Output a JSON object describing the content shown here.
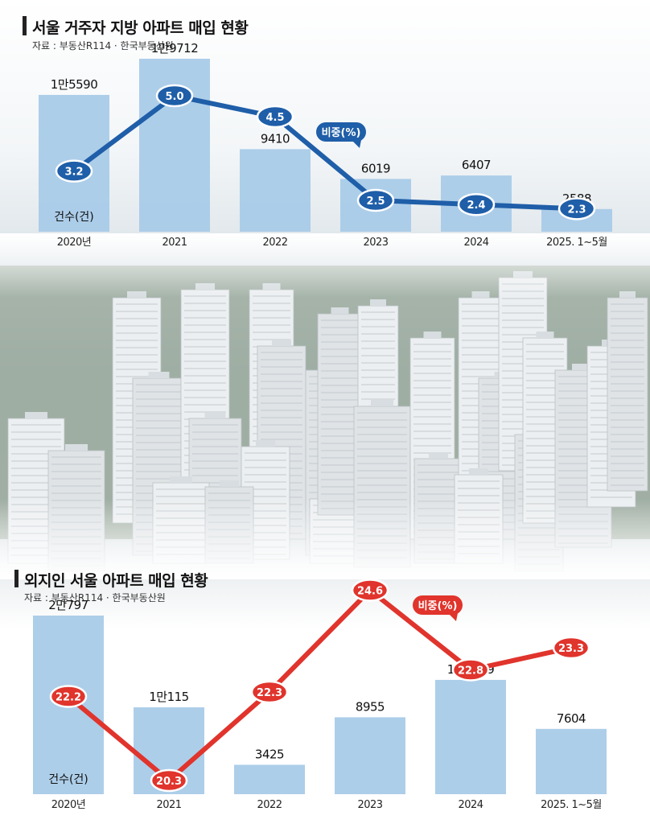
{
  "colors": {
    "bar": "#a9cbe8",
    "line_top": "#1f5ea8",
    "line_bottom": "#e0342c",
    "text": "#111111"
  },
  "chart_data": [
    {
      "type": "bar",
      "title": "서울 거주자 지방 아파트 매입 현황",
      "source": "자료 : 부동산R114 · 한국부동산원",
      "categories": [
        "2020년",
        "2021",
        "2022",
        "2023",
        "2024",
        "2025. 1~5월"
      ],
      "bar_series_name": "건수(건)",
      "bar_values": [
        15590,
        19712,
        9410,
        6019,
        6407,
        2588
      ],
      "bar_value_labels": [
        "1만5590",
        "1만9712",
        "9410",
        "6019",
        "6407",
        "2588"
      ],
      "line_series_name": "비중(%)",
      "line_values": [
        3.2,
        5.0,
        4.5,
        2.5,
        2.4,
        2.3
      ],
      "line_value_labels": [
        "3.2",
        "5.0",
        "4.5",
        "2.5",
        "2.4",
        "2.3"
      ]
    },
    {
      "type": "bar",
      "title": "외지인 서울 아파트 매입 현황",
      "source": "자료 : 부동산R114 · 한국부동산원",
      "categories": [
        "2020년",
        "2021",
        "2022",
        "2023",
        "2024",
        "2025. 1~5월"
      ],
      "bar_series_name": "건수(건)",
      "bar_values": [
        20797,
        10115,
        3425,
        8955,
        13309,
        7604
      ],
      "bar_value_labels": [
        "2만797",
        "1만115",
        "3425",
        "8955",
        "1만3309",
        "7604"
      ],
      "line_series_name": "비중(%)",
      "line_values": [
        22.2,
        20.3,
        22.3,
        24.6,
        22.8,
        23.3
      ],
      "line_value_labels": [
        "22.2",
        "20.3",
        "22.3",
        "24.6",
        "22.8",
        "23.3"
      ]
    }
  ]
}
